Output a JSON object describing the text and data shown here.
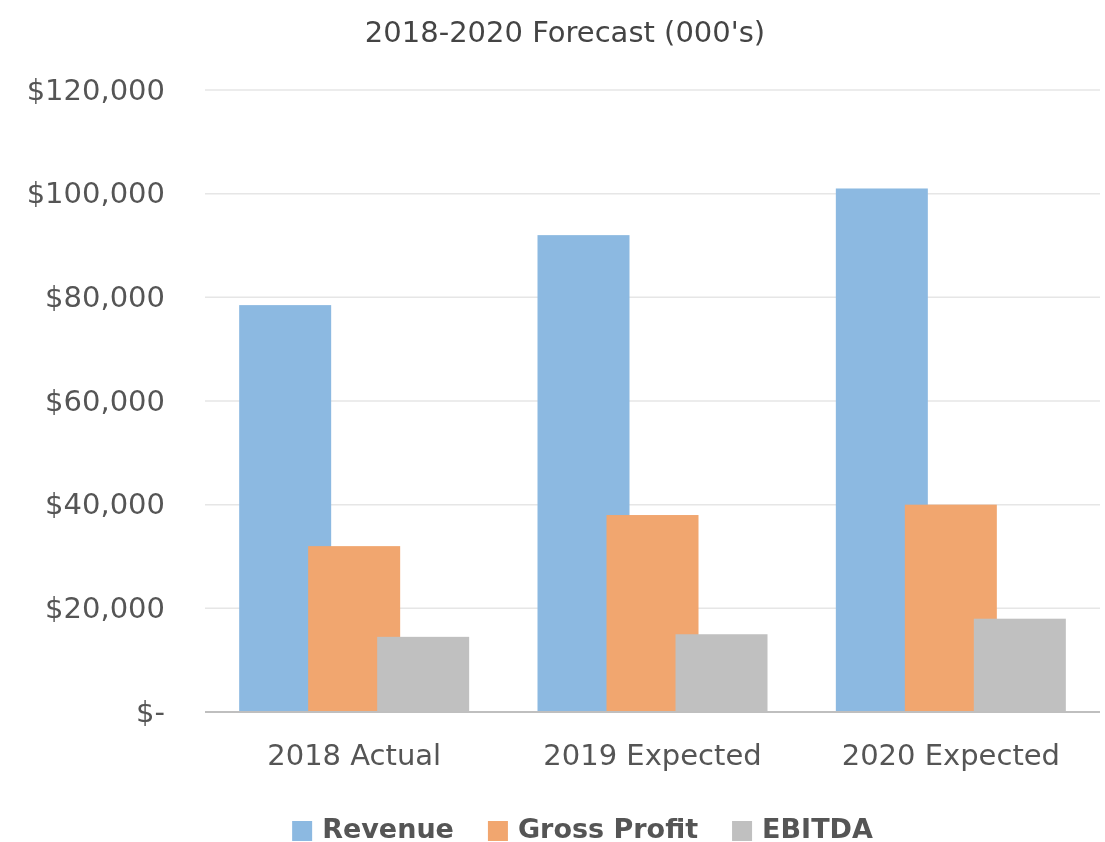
{
  "chart_data": {
    "type": "bar",
    "title": "2018-2020 Forecast (000's)",
    "categories": [
      "2018 Actual",
      "2019 Expected",
      "2020 Expected"
    ],
    "series": [
      {
        "name": "Revenue",
        "color": "#8cb9e1",
        "values": [
          78500,
          92000,
          101000
        ]
      },
      {
        "name": "Gross Profit",
        "color": "#f1a66f",
        "values": [
          32000,
          38000,
          40000
        ]
      },
      {
        "name": "EBITDA",
        "color": "#c0c0c0",
        "values": [
          14500,
          15000,
          18000
        ]
      }
    ],
    "ylim": [
      0,
      120000
    ],
    "yticks": [
      {
        "value": 0,
        "label": "$-"
      },
      {
        "value": 20000,
        "label": "$20,000"
      },
      {
        "value": 40000,
        "label": "$40,000"
      },
      {
        "value": 60000,
        "label": "$60,000"
      },
      {
        "value": 80000,
        "label": "$80,000"
      },
      {
        "value": 100000,
        "label": "$100,000"
      },
      {
        "value": 120000,
        "label": "$120,000"
      }
    ],
    "grid": "y",
    "legend": "bottom"
  }
}
